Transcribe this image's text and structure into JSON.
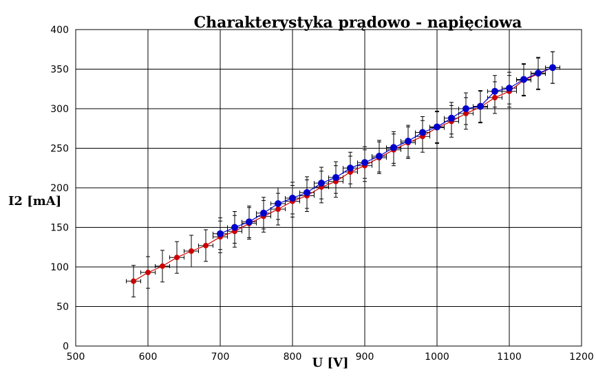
{
  "chart_data": {
    "type": "scatter",
    "title": "Charakterystyka prądowo - napięciowa",
    "xlabel": "U [V]",
    "ylabel": "I2 [mA]",
    "xlim": [
      500,
      1200
    ],
    "ylim": [
      0,
      400
    ],
    "xticks": [
      500,
      600,
      700,
      800,
      900,
      1000,
      1100,
      1200
    ],
    "yticks": [
      0,
      50,
      100,
      150,
      200,
      250,
      300,
      350,
      400
    ],
    "grid": true,
    "x_error": 10,
    "y_error": 20,
    "series": [
      {
        "color": "#cc0000",
        "x": [
          580,
          600,
          620,
          640,
          660,
          680,
          700,
          720,
          740,
          760,
          780,
          800,
          820,
          840,
          860,
          880,
          900,
          920,
          940,
          960,
          980,
          1000,
          1020,
          1040,
          1060,
          1080,
          1100,
          1120,
          1140,
          1160
        ],
        "y": [
          82,
          93,
          101,
          112,
          120,
          127,
          138,
          145,
          155,
          164,
          173,
          183,
          190,
          201,
          208,
          220,
          228,
          238,
          248,
          257,
          265,
          276,
          284,
          294,
          302,
          314,
          322,
          336,
          344,
          352
        ]
      },
      {
        "color": "#0000cc",
        "x": [
          700,
          720,
          740,
          760,
          780,
          800,
          820,
          840,
          860,
          880,
          900,
          920,
          940,
          960,
          980,
          1000,
          1020,
          1040,
          1060,
          1080,
          1100,
          1120,
          1140,
          1160
        ],
        "y": [
          142,
          150,
          157,
          168,
          180,
          187,
          194,
          206,
          213,
          225,
          232,
          240,
          251,
          259,
          270,
          277,
          288,
          300,
          303,
          322,
          326,
          337,
          345,
          352
        ]
      }
    ]
  }
}
